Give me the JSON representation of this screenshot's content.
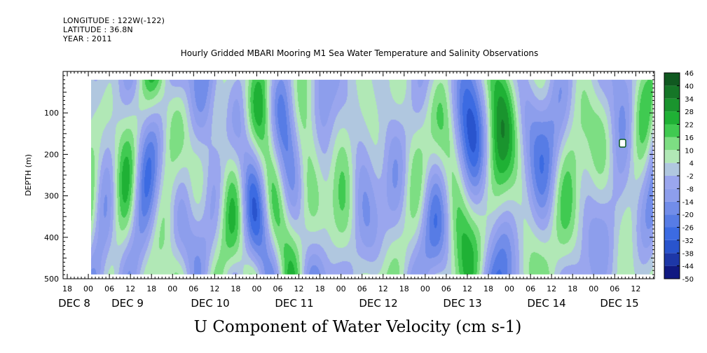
{
  "header": {
    "longitude": "LONGITUDE : 122W(-122)",
    "latitude": "LATITUDE : 36.8N",
    "year": "YEAR : 2011",
    "subtitle": "Hourly Gridded MBARI Mooring M1 Sea Water Temperature and Salinity Observations"
  },
  "chart_data": {
    "type": "heatmap",
    "title": "U Component of Water Velocity (cm s-1)",
    "xlabel": "",
    "ylabel": "DEPTH (m)",
    "y_axis": {
      "range": [
        500,
        0
      ],
      "inverted": true,
      "ticks": [
        100,
        200,
        300,
        400,
        500
      ]
    },
    "x_axis": {
      "hour_ticks": [
        "18",
        "00",
        "06",
        "12",
        "18",
        "00",
        "06",
        "12",
        "18",
        "00",
        "06",
        "12",
        "18",
        "00",
        "06",
        "12",
        "18",
        "00",
        "06",
        "12",
        "18",
        "00",
        "06",
        "12",
        "18",
        "00",
        "06",
        "12",
        "18",
        "00",
        "06",
        "12"
      ],
      "day_labels": [
        "DEC 8",
        "DEC 9",
        "DEC 10",
        "DEC 11",
        "DEC 12",
        "DEC 13",
        "DEC 14",
        "DEC 15"
      ]
    },
    "colorbar": {
      "levels": [
        -50,
        -44,
        -38,
        -32,
        -26,
        -20,
        -14,
        -8,
        -2,
        4,
        10,
        16,
        22,
        28,
        34,
        40,
        46
      ],
      "tick_labels": [
        "46",
        "40",
        "34",
        "28",
        "22",
        "16",
        "10",
        "4",
        "-2",
        "-8",
        "-14",
        "-20",
        "-26",
        "-32",
        "-38",
        "-44",
        "-50"
      ],
      "colors": {
        "low": "#0a0a6e",
        "neg_strong": "#2f63e0",
        "neg_weak": "#9aa6ee",
        "near_zero": "#c6e8cf",
        "pos_weak": "#9be89c",
        "pos_strong": "#22c038",
        "high": "#0d4a1d"
      }
    },
    "grid": false,
    "data_coverage_depth_m": [
      20,
      490
    ]
  }
}
